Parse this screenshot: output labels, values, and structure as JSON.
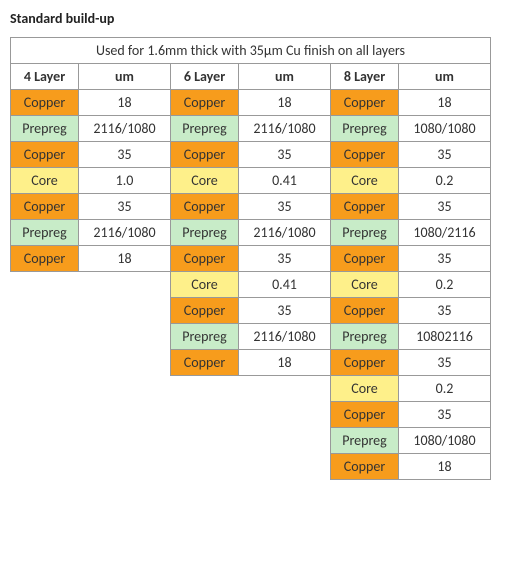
{
  "title": "Standard build-up",
  "caption": "Used for 1.6mm thick with 35µm Cu finish on all layers",
  "headers": [
    "4 Layer",
    "um",
    "6 Layer",
    "um",
    "8 Layer",
    "um"
  ],
  "colors": {
    "copper_bg": "#f79c1c",
    "prepreg_bg": "#c8ecc8",
    "core_bg": "#fef08a",
    "header_bg": "#ffffff",
    "value_bg": "#ffffff"
  },
  "layer4": [
    {
      "label": "Copper",
      "val": "18",
      "type": "copper"
    },
    {
      "label": "Prepreg",
      "val": "2116/1080",
      "type": "prepreg"
    },
    {
      "label": "Copper",
      "val": "35",
      "type": "copper"
    },
    {
      "label": "Core",
      "val": "1.0",
      "type": "core"
    },
    {
      "label": "Copper",
      "val": "35",
      "type": "copper"
    },
    {
      "label": "Prepreg",
      "val": "2116/1080",
      "type": "prepreg"
    },
    {
      "label": "Copper",
      "val": "18",
      "type": "copper"
    }
  ],
  "layer6": [
    {
      "label": "Copper",
      "val": "18",
      "type": "copper"
    },
    {
      "label": "Prepreg",
      "val": "2116/1080",
      "type": "prepreg"
    },
    {
      "label": "Copper",
      "val": "35",
      "type": "copper"
    },
    {
      "label": "Core",
      "val": "0.41",
      "type": "core"
    },
    {
      "label": "Copper",
      "val": "35",
      "type": "copper"
    },
    {
      "label": "Prepreg",
      "val": "2116/1080",
      "type": "prepreg"
    },
    {
      "label": "Copper",
      "val": "35",
      "type": "copper"
    },
    {
      "label": "Core",
      "val": "0.41",
      "type": "core"
    },
    {
      "label": "Copper",
      "val": "35",
      "type": "copper"
    },
    {
      "label": "Prepreg",
      "val": "2116/1080",
      "type": "prepreg"
    },
    {
      "label": "Copper",
      "val": "18",
      "type": "copper"
    }
  ],
  "layer8": [
    {
      "label": "Copper",
      "val": "18",
      "type": "copper"
    },
    {
      "label": "Prepreg",
      "val": "1080/1080",
      "type": "prepreg"
    },
    {
      "label": "Copper",
      "val": "35",
      "type": "copper"
    },
    {
      "label": "Core",
      "val": "0.2",
      "type": "core"
    },
    {
      "label": "Copper",
      "val": "35",
      "type": "copper"
    },
    {
      "label": "Prepreg",
      "val": "1080/2116",
      "type": "prepreg"
    },
    {
      "label": "Copper",
      "val": "35",
      "type": "copper"
    },
    {
      "label": "Core",
      "val": "0.2",
      "type": "core"
    },
    {
      "label": "Copper",
      "val": "35",
      "type": "copper"
    },
    {
      "label": "Prepreg",
      "val": "10802116",
      "type": "prepreg"
    },
    {
      "label": "Copper",
      "val": "35",
      "type": "copper"
    },
    {
      "label": "Core",
      "val": "0.2",
      "type": "core"
    },
    {
      "label": "Copper",
      "val": "35",
      "type": "copper"
    },
    {
      "label": "Prepreg",
      "val": "1080/1080",
      "type": "prepreg"
    },
    {
      "label": "Copper",
      "val": "18",
      "type": "copper"
    }
  ]
}
